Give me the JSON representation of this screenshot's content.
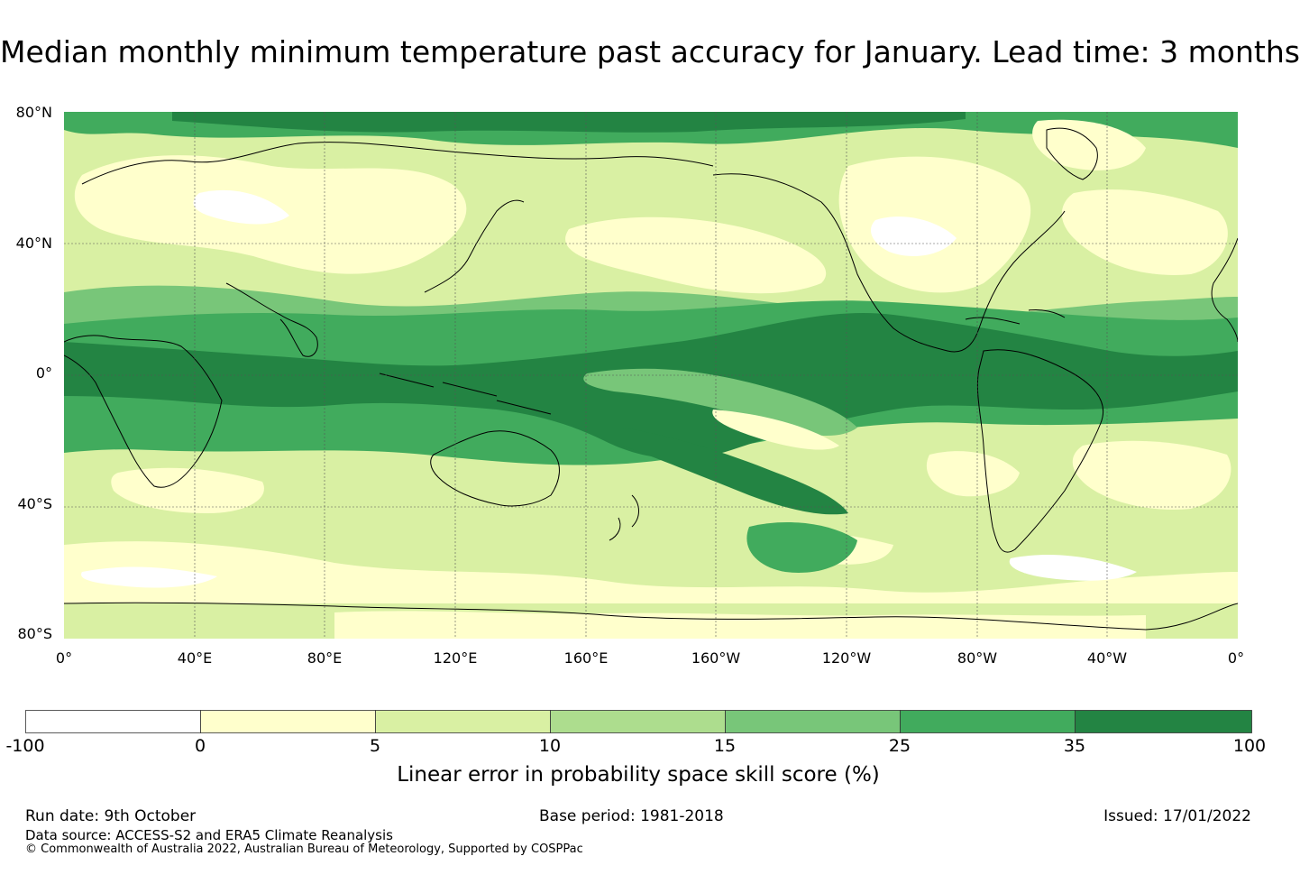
{
  "title": "Median monthly minimum temperature past accuracy for January. Lead time: 3 months",
  "lat_labels": [
    "80°N",
    "40°N",
    "0°",
    "40°S",
    "80°S"
  ],
  "lon_labels": [
    "0°",
    "40°E",
    "80°E",
    "120°E",
    "160°E",
    "160°W",
    "120°W",
    "80°W",
    "40°W",
    "0°"
  ],
  "colorbar": {
    "ticks": [
      "-100",
      "0",
      "5",
      "10",
      "15",
      "25",
      "35",
      "100"
    ],
    "colors": [
      "#ffffff",
      "#ffffcc",
      "#d9f0a3",
      "#addd8e",
      "#78c679",
      "#41ab5d",
      "#238443"
    ],
    "label": "Linear error in probability space skill score (%)"
  },
  "footer": {
    "run_date": "Run date: 9th October",
    "base_period": "Base period: 1981-2018",
    "issued": "Issued: 17/01/2022",
    "data_source": "Data source: ACCESS-S2 and ERA5 Climate Reanalysis",
    "copyright": "© Commonwealth of Australia 2022, Australian Bureau of Meteorology, Supported by COSPPac"
  }
}
